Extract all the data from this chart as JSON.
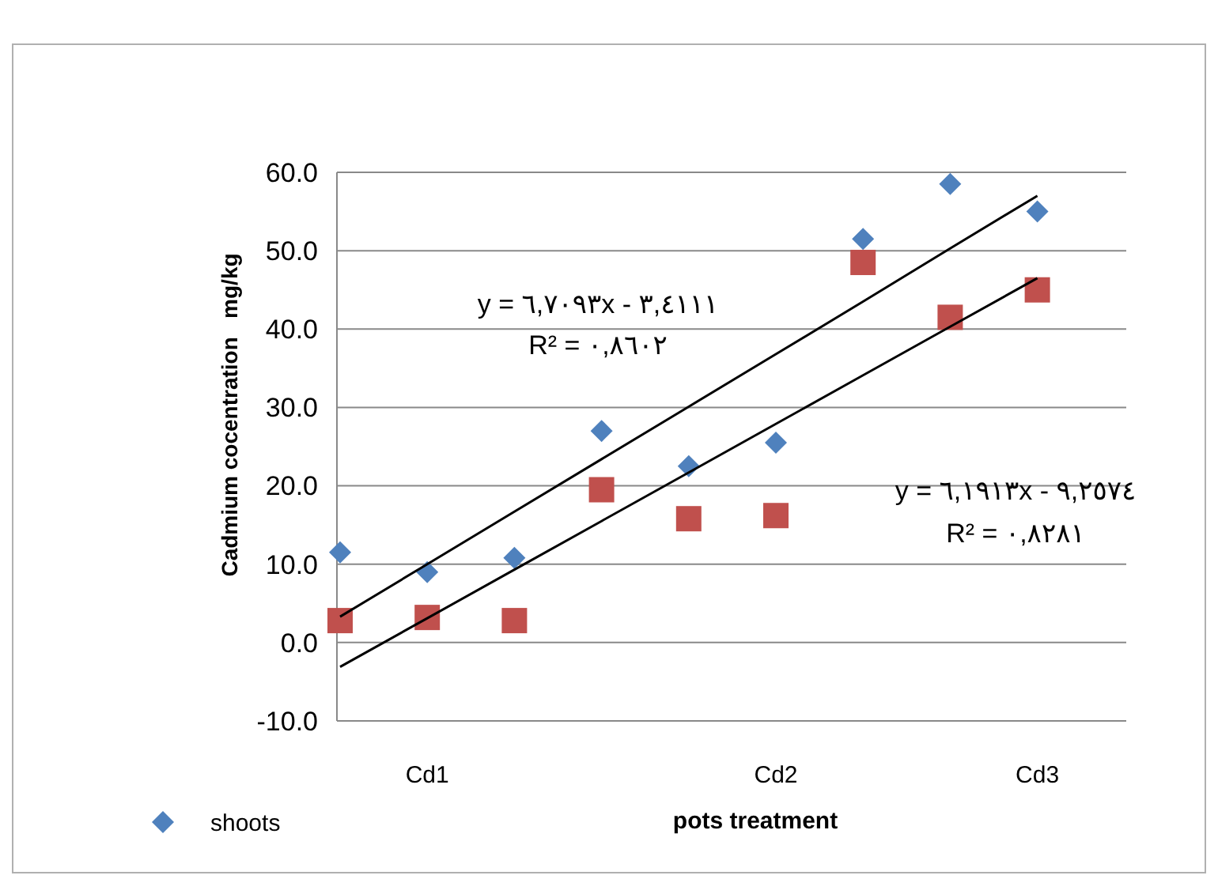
{
  "chart_data": {
    "type": "scatter",
    "xlabel": "pots treatment",
    "ylabel": "Cadmium cocentration   mg/kg",
    "categories": [
      null,
      "Cd1",
      null,
      null,
      null,
      "Cd2",
      null,
      null,
      "Cd3"
    ],
    "ylim": [
      -10,
      60
    ],
    "yticks": [
      {
        "value": -10,
        "label": "-10.0"
      },
      {
        "value": 0,
        "label": "0.0"
      },
      {
        "value": 10,
        "label": "10.0"
      },
      {
        "value": 20,
        "label": "20.0"
      },
      {
        "value": 30,
        "label": "30.0"
      },
      {
        "value": 40,
        "label": "40.0"
      },
      {
        "value": 50,
        "label": "50.0"
      },
      {
        "value": 60,
        "label": "60.0"
      }
    ],
    "grid": "y",
    "legend": "bottom left",
    "series": [
      {
        "name": "shoots",
        "type": "scatter",
        "marker": "diamond",
        "color": "#4f81bd",
        "values": [
          11.5,
          9,
          10.8,
          27,
          22.5,
          25.5,
          51.5,
          58.5,
          55
        ]
      },
      {
        "type": "scatter",
        "marker": "square",
        "color": "#c0504d",
        "values": [
          2.8,
          3.2,
          2.8,
          19.5,
          15.8,
          16.2,
          48.5,
          41.5,
          45
        ]
      },
      {
        "type": "line",
        "marker": "none",
        "color": "#000000",
        "values": [
          3.3,
          10.0,
          16.7,
          23.4,
          30.1,
          36.8,
          43.5,
          50.3,
          57.0
        ]
      },
      {
        "type": "line",
        "marker": "none",
        "color": "#000000",
        "values": [
          -3.1,
          3.1,
          9.3,
          15.5,
          21.7,
          27.9,
          34.1,
          40.3,
          46.5
        ]
      }
    ],
    "annotations": [
      "y = ٦,٧٠٩٣x - ٣,٤١١١",
      "R² = ٠,٨٦٠٢",
      "y = ٦,١٩١٣x - ٩,٢٥٧٤",
      "R² = ٠,٨٢٨١"
    ]
  }
}
